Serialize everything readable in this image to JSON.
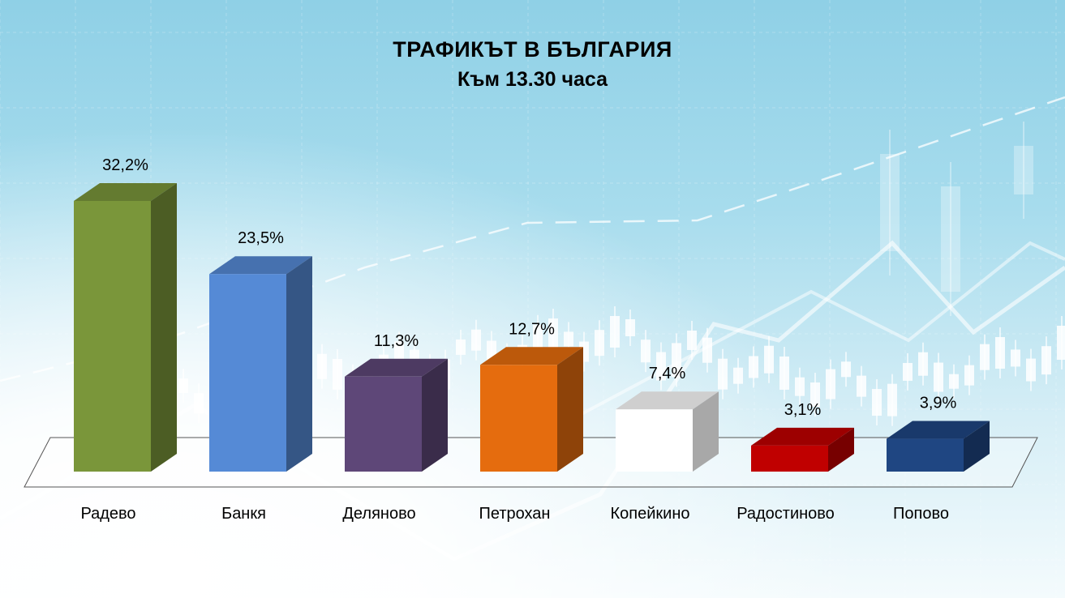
{
  "chart_data": {
    "type": "bar",
    "title": "ТРАФИКЪТ В БЪЛГАРИЯ",
    "subtitle": "Към 13.30 часа",
    "categories": [
      "Радево",
      "Банкя",
      "Деляново",
      "Петрохан",
      "Копейкино",
      "Радостиново",
      "Попово"
    ],
    "values": [
      32.2,
      23.5,
      11.3,
      12.7,
      7.4,
      3.1,
      3.9
    ],
    "value_labels": [
      "32,2%",
      "23,5%",
      "11,3%",
      "12,7%",
      "7,4%",
      "3,1%",
      "3,9%"
    ],
    "colors": [
      "#7a963a",
      "#558ad6",
      "#5e4778",
      "#e56c0e",
      "#ffffff",
      "#c00000",
      "#1f4682"
    ],
    "ylim": [
      0,
      32.2
    ],
    "grid": false,
    "legend": "none",
    "style": "3d-columns"
  }
}
